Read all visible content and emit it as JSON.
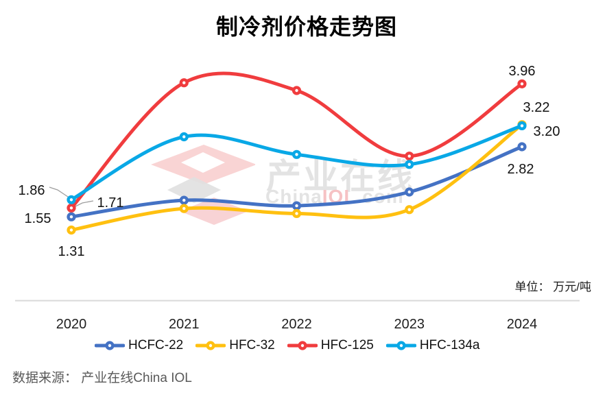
{
  "title": "制冷剂价格走势图",
  "unit_label": "单位： 万元/吨",
  "source": "数据来源： 产业在线China IOL",
  "watermark": {
    "cn": "产业在线",
    "en_gray": "China",
    "en_red": "IOL",
    "en_tail": ".com"
  },
  "colors": {
    "hcfc22": "#4472C4",
    "hfc32": "#FFC010",
    "hfc125": "#F03C3E",
    "hfc134a": "#09A8E6",
    "axis": "#D9D9D9",
    "leader": "#9E9E9E"
  },
  "chart_data": {
    "type": "line",
    "title": "制冷剂价格走势图",
    "unit": "万元/吨",
    "categories": [
      "2020",
      "2021",
      "2022",
      "2023",
      "2024"
    ],
    "series": [
      {
        "name": "HCFC-22",
        "color": "#4472C4",
        "values": [
          1.55,
          1.85,
          1.75,
          2.0,
          2.82
        ],
        "first_label": "1.55",
        "last_label": "2.82"
      },
      {
        "name": "HFC-32",
        "color": "#FFC010",
        "values": [
          1.31,
          1.7,
          1.61,
          1.68,
          3.22
        ],
        "first_label": "1.31",
        "last_label": "3.22"
      },
      {
        "name": "HFC-125",
        "color": "#F03C3E",
        "values": [
          1.71,
          3.98,
          3.84,
          2.65,
          3.96
        ],
        "first_label": "1.71",
        "last_label": "3.96"
      },
      {
        "name": "HFC-134a",
        "color": "#09A8E6",
        "values": [
          1.86,
          3.0,
          2.68,
          2.5,
          3.2
        ],
        "first_label": "1.86",
        "last_label": "3.20"
      }
    ],
    "smooth": true,
    "grid": false,
    "legend_position": "bottom",
    "ylim": [
      1.2,
      4.2
    ],
    "labeled_points": "first and last of each series"
  }
}
